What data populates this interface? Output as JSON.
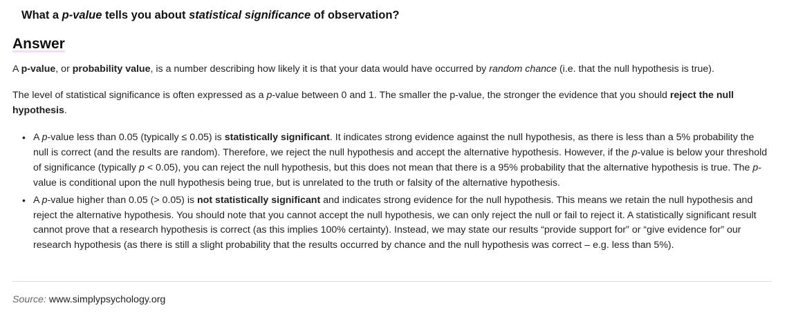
{
  "question": {
    "prefix": "What a ",
    "pvalue": "p-value",
    "middle": " tells you about ",
    "significance": "statistical significance",
    "suffix": " of observation?"
  },
  "answer_heading": "Answer",
  "accent_color": "#efdff2",
  "paragraph1": {
    "t1": "A ",
    "b1": "p-value",
    "t2": ", or ",
    "b2": "probability value",
    "t3": ", is a number describing how likely it is that your data would have occurred by ",
    "i1": "random chance",
    "t4": " (i.e. that the null hypothesis is true)."
  },
  "paragraph2": {
    "t1": "The level of statistical significance is often expressed as a ",
    "i1": "p",
    "t2": "-value between 0 and 1. The smaller the p-value, the stronger the evidence that you should ",
    "b1": "reject the null hypothesis",
    "t3": "."
  },
  "bullets": [
    {
      "t1": "A ",
      "i1": "p",
      "t2": "-value less than 0.05 (typically ≤ 0.05) is ",
      "b1": "statistically significant",
      "t3": ". It indicates strong evidence against the null hypothesis, as there is less than a 5% probability the null is correct (and the results are random). Therefore, we reject the null hypothesis and accept the alternative hypothesis. However, if the ",
      "i2": "p",
      "t4": "-value is below your threshold of significance (typically ",
      "i3": "p",
      "t5": " < 0.05), you can reject the null hypothesis, but this does not mean that there is a 95% probability that the alternative hypothesis is true. The ",
      "i4": "p",
      "t6": "-value is conditional upon the null hypothesis being true, but is unrelated to the truth or falsity of the alternative hypothesis."
    },
    {
      "t1": "A ",
      "i1": "p",
      "t2": "-value higher than 0.05 (> 0.05) is ",
      "b1": "not statistically significant",
      "t3": " and indicates strong evidence for the null hypothesis. This means we retain the null hypothesis and reject the alternative hypothesis. You should note that you cannot accept the null hypothesis, we can only reject the null or fail to reject it. A statistically significant result cannot prove that a research hypothesis is correct (as this implies 100% certainty). Instead, we may state our results “provide support for” or “give evidence for” our research hypothesis (as there is still a slight probability that the results occurred by chance and the null hypothesis was correct – e.g. less than 5%)."
    }
  ],
  "bullet_symbol": "•",
  "source": {
    "label": "Source:",
    "url": "www.simplypsychology.org"
  }
}
